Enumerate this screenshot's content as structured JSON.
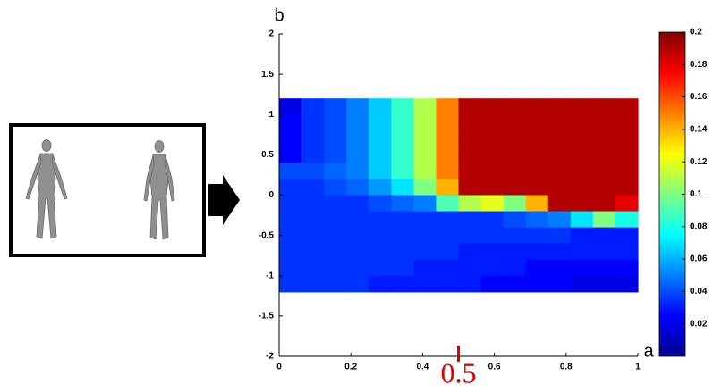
{
  "chart_data": {
    "type": "heatmap",
    "xlabel": "a",
    "ylabel": "b",
    "xlim": [
      0,
      1
    ],
    "ylim": [
      -2,
      2
    ],
    "xticks": [
      0,
      0.2,
      0.4,
      0.6,
      0.8,
      1
    ],
    "yticks": [
      -2,
      -1.5,
      -1,
      -0.5,
      0,
      0.5,
      1,
      1.5,
      2
    ],
    "colormap": "jet",
    "clim": [
      0,
      0.2
    ],
    "cticks": [
      0.02,
      0.04,
      0.06,
      0.08,
      0.1,
      0.12,
      0.14,
      0.16,
      0.18,
      0.2
    ],
    "x": [
      0.03125,
      0.09375,
      0.15625,
      0.21875,
      0.28125,
      0.34375,
      0.40625,
      0.46875,
      0.53125,
      0.59375,
      0.65625,
      0.71875,
      0.78125,
      0.84375,
      0.90625,
      0.96875
    ],
    "y": [
      1.1,
      0.9,
      0.7,
      0.5,
      0.3,
      0.1,
      -0.1,
      -0.3,
      -0.5,
      -0.7,
      -0.9,
      -1.1
    ],
    "z": [
      [
        0.02,
        0.035,
        0.04,
        0.05,
        0.065,
        0.085,
        0.11,
        0.15,
        0.19,
        0.19,
        0.19,
        0.19,
        0.19,
        0.19,
        0.19,
        0.19
      ],
      [
        0.025,
        0.035,
        0.04,
        0.05,
        0.065,
        0.085,
        0.11,
        0.15,
        0.19,
        0.19,
        0.19,
        0.19,
        0.19,
        0.19,
        0.19,
        0.19
      ],
      [
        0.025,
        0.035,
        0.04,
        0.05,
        0.065,
        0.085,
        0.11,
        0.15,
        0.19,
        0.19,
        0.19,
        0.19,
        0.19,
        0.19,
        0.19,
        0.19
      ],
      [
        0.025,
        0.035,
        0.04,
        0.05,
        0.065,
        0.085,
        0.11,
        0.15,
        0.19,
        0.19,
        0.19,
        0.19,
        0.19,
        0.19,
        0.19,
        0.19
      ],
      [
        0.04,
        0.04,
        0.045,
        0.05,
        0.065,
        0.085,
        0.11,
        0.15,
        0.19,
        0.19,
        0.19,
        0.19,
        0.19,
        0.19,
        0.19,
        0.19
      ],
      [
        0.035,
        0.035,
        0.04,
        0.045,
        0.055,
        0.07,
        0.1,
        0.14,
        0.19,
        0.19,
        0.19,
        0.19,
        0.19,
        0.19,
        0.19,
        0.19
      ],
      [
        0.035,
        0.035,
        0.035,
        0.035,
        0.04,
        0.045,
        0.05,
        0.09,
        0.11,
        0.12,
        0.1,
        0.14,
        0.19,
        0.19,
        0.19,
        0.18
      ],
      [
        0.035,
        0.035,
        0.035,
        0.035,
        0.035,
        0.035,
        0.035,
        0.035,
        0.035,
        0.035,
        0.04,
        0.045,
        0.05,
        0.07,
        0.1,
        0.08
      ],
      [
        0.035,
        0.035,
        0.035,
        0.035,
        0.035,
        0.035,
        0.035,
        0.035,
        0.035,
        0.035,
        0.035,
        0.035,
        0.035,
        0.03,
        0.03,
        0.03
      ],
      [
        0.035,
        0.035,
        0.035,
        0.035,
        0.035,
        0.035,
        0.035,
        0.035,
        0.03,
        0.03,
        0.03,
        0.03,
        0.03,
        0.03,
        0.03,
        0.03
      ],
      [
        0.035,
        0.035,
        0.035,
        0.035,
        0.035,
        0.035,
        0.03,
        0.03,
        0.03,
        0.03,
        0.03,
        0.025,
        0.025,
        0.025,
        0.025,
        0.025
      ],
      [
        0.035,
        0.035,
        0.035,
        0.035,
        0.03,
        0.03,
        0.03,
        0.03,
        0.03,
        0.025,
        0.025,
        0.025,
        0.025,
        0.02,
        0.02,
        0.02
      ]
    ],
    "annotation": {
      "label": "0.5",
      "x": 0.5
    }
  }
}
